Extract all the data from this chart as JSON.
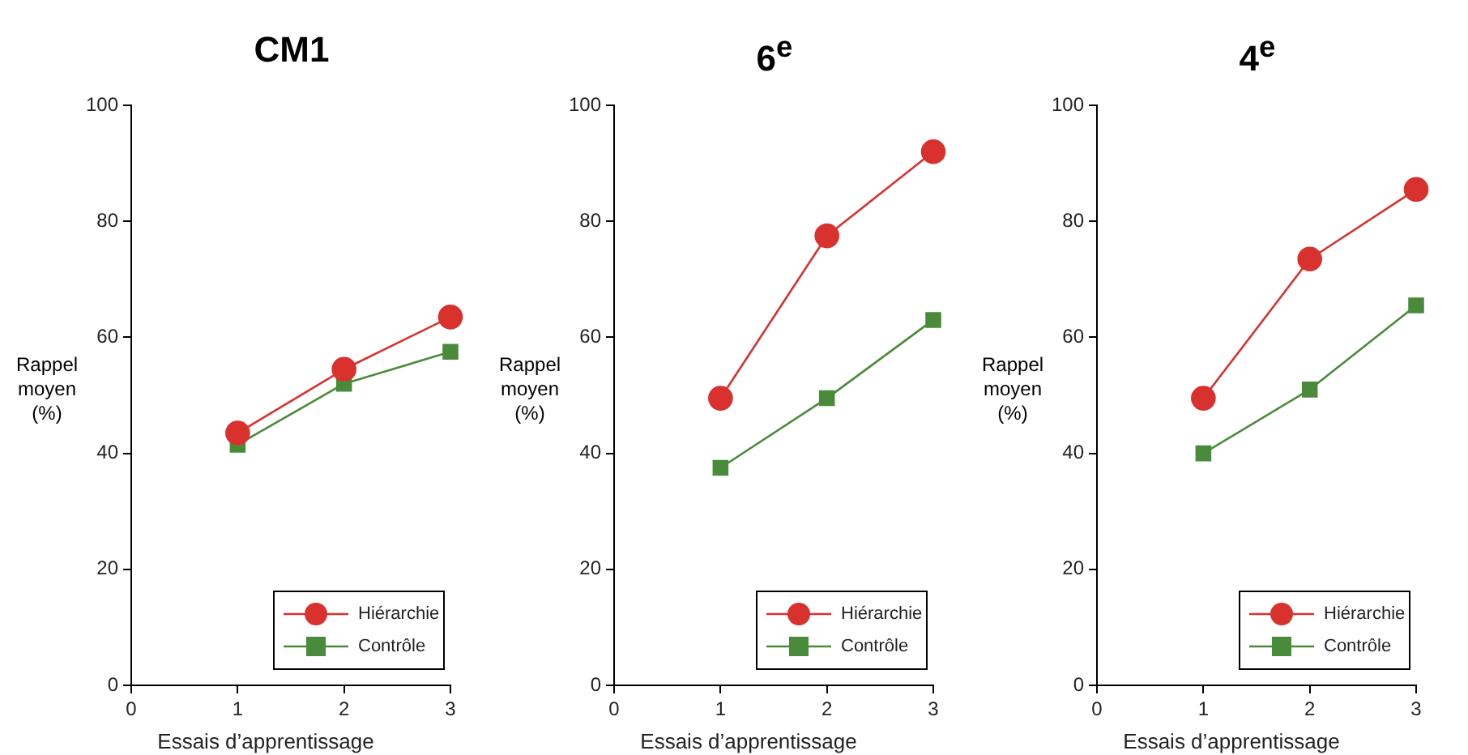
{
  "chart_data": [
    {
      "type": "line",
      "title": "CM1",
      "xlabel": "Essais d’apprentissage",
      "ylabel": "Rappel moyen (%)",
      "x": [
        1,
        2,
        3
      ],
      "xlim": [
        0,
        3
      ],
      "xticks": [
        0,
        1,
        2,
        3
      ],
      "ylim": [
        0,
        100
      ],
      "yticks": [
        0,
        20,
        40,
        60,
        80,
        100
      ],
      "grid": false,
      "legend": "bottom right",
      "series": [
        {
          "name": "Hiérarchie",
          "color": "#d9312e",
          "marker": "circle",
          "values": [
            43.5,
            54.5,
            63.5
          ]
        },
        {
          "name": "Contrôle",
          "color": "#4a8b3b",
          "marker": "square",
          "values": [
            41.5,
            52,
            57.5
          ]
        }
      ]
    },
    {
      "type": "line",
      "title": "6$^{e}$",
      "xlabel": "Essais d’apprentissage",
      "ylabel": "Rappel moyen (%)",
      "x": [
        1,
        2,
        3
      ],
      "xlim": [
        0,
        3
      ],
      "xticks": [
        0,
        1,
        2,
        3
      ],
      "ylim": [
        0,
        100
      ],
      "yticks": [
        0,
        20,
        40,
        60,
        80,
        100
      ],
      "grid": false,
      "legend": "bottom right",
      "series": [
        {
          "name": "Hiérarchie",
          "color": "#d9312e",
          "marker": "circle",
          "values": [
            49.5,
            77.5,
            92
          ]
        },
        {
          "name": "Contrôle",
          "color": "#4a8b3b",
          "marker": "square",
          "values": [
            37.5,
            49.5,
            63
          ]
        }
      ]
    },
    {
      "type": "line",
      "title": "4$^{e}$",
      "xlabel": "Essais d’apprentissage",
      "ylabel": "Rappel moyen (%)",
      "x": [
        1,
        2,
        3
      ],
      "xlim": [
        0,
        3
      ],
      "xticks": [
        0,
        1,
        2,
        3
      ],
      "ylim": [
        0,
        100
      ],
      "yticks": [
        0,
        20,
        40,
        60,
        80,
        100
      ],
      "grid": false,
      "legend": "bottom right",
      "series": [
        {
          "name": "Hiérarchie",
          "color": "#d9312e",
          "marker": "circle",
          "values": [
            49.5,
            73.5,
            85.5
          ]
        },
        {
          "name": "Contrôle",
          "color": "#4a8b3b",
          "marker": "square",
          "values": [
            40,
            51,
            65.5
          ]
        }
      ]
    }
  ]
}
